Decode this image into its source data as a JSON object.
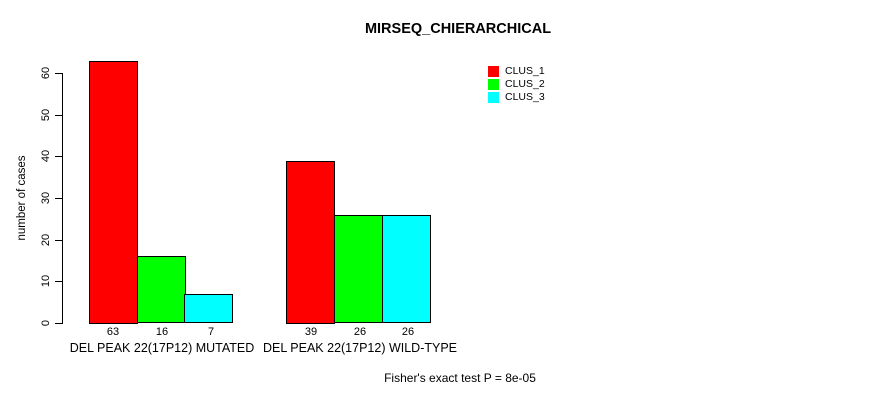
{
  "title": "MIRSEQ_CHIERARCHICAL",
  "ylabel": "number of cases",
  "footer": "Fisher's exact test P = 8e-05",
  "legend": {
    "items": [
      {
        "label": "CLUS_1",
        "color": "#ff0000"
      },
      {
        "label": "CLUS_2",
        "color": "#00ff00"
      },
      {
        "label": "CLUS_3",
        "color": "#00ffff"
      }
    ]
  },
  "chart_data": {
    "type": "bar",
    "grouped": true,
    "title": "MIRSEQ_CHIERARCHICAL",
    "xlabel": "",
    "ylabel": "number of cases",
    "categories": [
      "DEL PEAK 22(17P12) MUTATED",
      "DEL PEAK 22(17P12) WILD-TYPE"
    ],
    "series": [
      {
        "name": "CLUS_1",
        "color": "#ff0000",
        "values": [
          63,
          39
        ]
      },
      {
        "name": "CLUS_2",
        "color": "#00ff00",
        "values": [
          16,
          26
        ]
      },
      {
        "name": "CLUS_3",
        "color": "#00ffff",
        "values": [
          7,
          26
        ]
      }
    ],
    "bar_value_labels": [
      [
        "63",
        "16",
        "7"
      ],
      [
        "39",
        "26",
        "26"
      ]
    ],
    "ylim": [
      0,
      60
    ],
    "yticks": [
      0,
      10,
      20,
      30,
      40,
      50,
      60
    ],
    "grid": false,
    "legend_position": "top-right",
    "annotation": "Fisher's exact test P = 8e-05"
  }
}
